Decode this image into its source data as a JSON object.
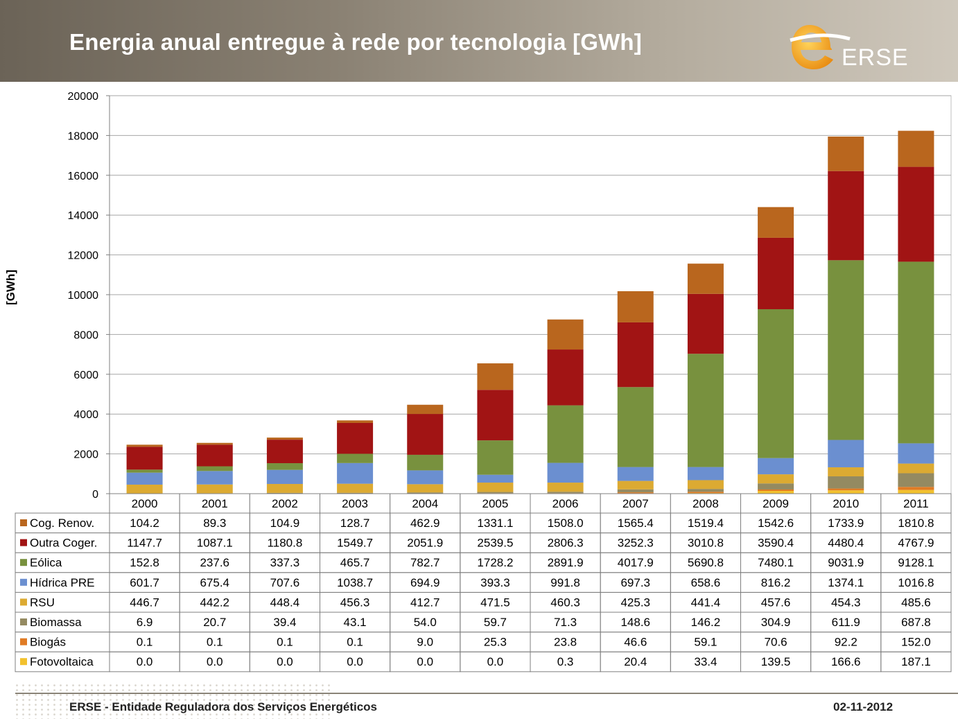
{
  "header": {
    "title": "Energia anual entregue à rede por tecnologia [GWh]",
    "logo_text": "ERSE"
  },
  "footer": {
    "organization": "ERSE - Entidade Reguladora dos Serviços Energéticos",
    "date": "02-11-2012"
  },
  "colors": {
    "Fotovoltaica": "#f2c12e",
    "Biogás": "#e07b24",
    "Biomassa": "#948a61",
    "RSU": "#dcaa32",
    "Hídrica PRE": "#6b8fd0",
    "Eólica": "#78913e",
    "Outra Coger.": "#a11414",
    "Cog. Renov.": "#b9661e"
  },
  "chart_data": {
    "type": "bar",
    "stacked": true,
    "ylabel": "[GWh]",
    "ylim": [
      0,
      20000
    ],
    "yticks": [
      "0",
      "2000",
      "4000",
      "6000",
      "8000",
      "10000",
      "12000",
      "14000",
      "16000",
      "18000",
      "20000"
    ],
    "grid": true,
    "legend": "data-table-below",
    "categories": [
      "2000",
      "2001",
      "2002",
      "2003",
      "2004",
      "2005",
      "2006",
      "2007",
      "2008",
      "2009",
      "2010",
      "2011"
    ],
    "series": [
      {
        "name": "Fotovoltaica",
        "values": [
          0.0,
          0.0,
          0.0,
          0.0,
          0.0,
          0.0,
          0.3,
          20.4,
          33.4,
          139.5,
          166.6,
          187.1
        ]
      },
      {
        "name": "Biogás",
        "values": [
          0.1,
          0.1,
          0.1,
          0.1,
          9.0,
          25.3,
          23.8,
          46.6,
          59.1,
          70.6,
          92.2,
          152.0
        ]
      },
      {
        "name": "Biomassa",
        "values": [
          6.9,
          20.7,
          39.4,
          43.1,
          54.0,
          59.7,
          71.3,
          148.6,
          146.2,
          304.9,
          611.9,
          687.8
        ]
      },
      {
        "name": "RSU",
        "values": [
          446.7,
          442.2,
          448.4,
          456.3,
          412.7,
          471.5,
          460.3,
          425.3,
          441.4,
          457.6,
          454.3,
          485.6
        ]
      },
      {
        "name": "Hídrica PRE",
        "values": [
          601.7,
          675.4,
          707.6,
          1038.7,
          694.9,
          393.3,
          991.8,
          697.3,
          658.6,
          816.2,
          1374.1,
          1016.8
        ]
      },
      {
        "name": "Eólica",
        "values": [
          152.8,
          237.6,
          337.3,
          465.7,
          782.7,
          1728.2,
          2891.9,
          4017.9,
          5690.8,
          7480.1,
          9031.9,
          9128.1
        ]
      },
      {
        "name": "Outra Coger.",
        "values": [
          1147.7,
          1087.1,
          1180.8,
          1549.7,
          2051.9,
          2539.5,
          2806.3,
          3252.3,
          3010.8,
          3590.4,
          4480.4,
          4767.9
        ]
      },
      {
        "name": "Cog. Renov.",
        "values": [
          104.2,
          89.3,
          104.9,
          128.7,
          462.9,
          1331.1,
          1508.0,
          1565.4,
          1519.4,
          1542.6,
          1733.9,
          1810.8
        ]
      }
    ],
    "table_order": [
      "Cog. Renov.",
      "Outra Coger.",
      "Eólica",
      "Hídrica PRE",
      "RSU",
      "Biomassa",
      "Biogás",
      "Fotovoltaica"
    ]
  }
}
